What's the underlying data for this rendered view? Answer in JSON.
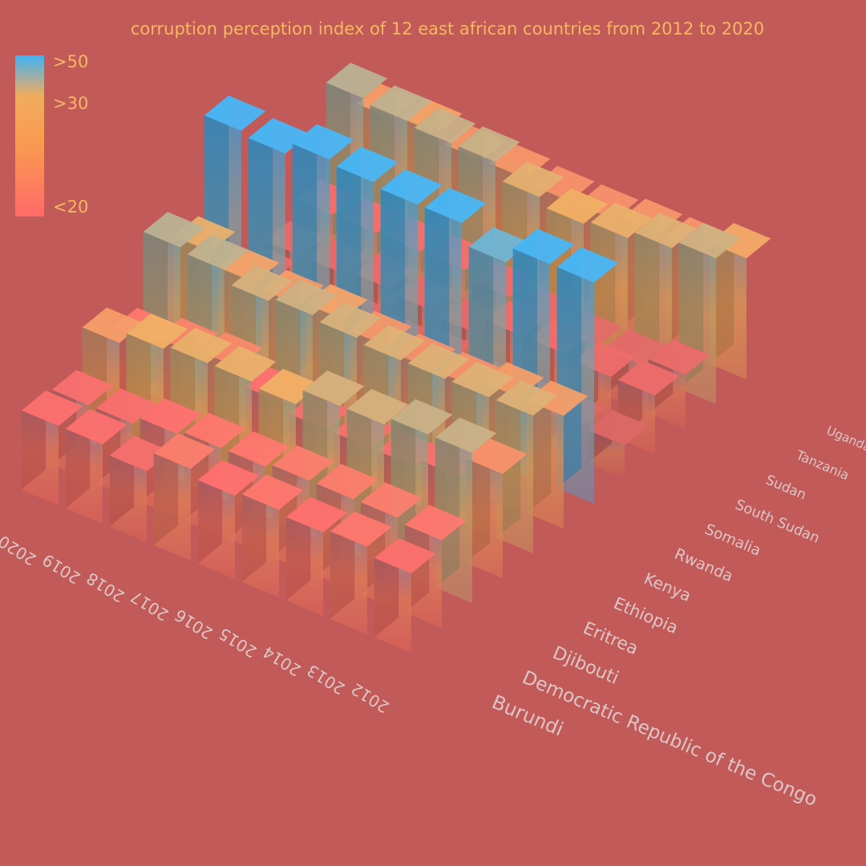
{
  "title": "corruption perception index of 12 east african countries from 2012 to 2020",
  "legend": {
    "labels": [
      ">50",
      ">30",
      "<20"
    ],
    "colors": [
      "#3fb2f6",
      "#f1ac5e",
      "#ff6a68"
    ]
  },
  "chart_data": {
    "type": "bar3d",
    "title": "corruption perception index of 12 east african countries from 2012 to 2020",
    "years": [
      "2012",
      "2013",
      "2014",
      "2015",
      "2016",
      "2017",
      "2018",
      "2019",
      "2020"
    ],
    "countries": [
      "Burundi",
      "Democratic Republic of the Congo",
      "Djibouti",
      "Eritrea",
      "Ethiopia",
      "Kenya",
      "Rwanda",
      "Somalia",
      "South Sudan",
      "Sudan",
      "Tanzania",
      "Uganda"
    ],
    "series": [
      {
        "name": "Burundi",
        "values": [
          19,
          21,
          20,
          21,
          20,
          22,
          17,
          19,
          19
        ]
      },
      {
        "name": "Democratic Republic of the Congo",
        "values": [
          21,
          22,
          22,
          22,
          21,
          21,
          20,
          18,
          18
        ]
      },
      {
        "name": "Djibouti",
        "values": [
          36,
          36,
          34,
          34,
          30,
          31,
          31,
          30,
          27
        ]
      },
      {
        "name": "Eritrea",
        "values": [
          25,
          20,
          18,
          18,
          18,
          20,
          24,
          23,
          21
        ]
      },
      {
        "name": "Ethiopia",
        "values": [
          33,
          33,
          33,
          33,
          34,
          35,
          34,
          37,
          38
        ]
      },
      {
        "name": "Kenya",
        "values": [
          27,
          27,
          25,
          25,
          26,
          28,
          27,
          28,
          31
        ]
      },
      {
        "name": "Rwanda",
        "values": [
          53,
          53,
          49,
          54,
          54,
          55,
          56,
          53,
          54
        ]
      },
      {
        "name": "Somalia",
        "values": [
          8,
          8,
          8,
          8,
          10,
          9,
          10,
          9,
          12
        ]
      },
      {
        "name": "South Sudan",
        "values": [
          14,
          14,
          15,
          15,
          11,
          12,
          13,
          12,
          12
        ]
      },
      {
        "name": "Sudan",
        "values": [
          13,
          11,
          11,
          12,
          14,
          16,
          16,
          16,
          16
        ]
      },
      {
        "name": "Tanzania",
        "values": [
          35,
          33,
          31,
          30,
          32,
          36,
          36,
          37,
          38
        ]
      },
      {
        "name": "Uganda",
        "values": [
          29,
          26,
          26,
          25,
          25,
          26,
          26,
          28,
          27
        ]
      }
    ],
    "zlim": [
      0,
      60
    ],
    "grid": false,
    "legend_position": "top-left"
  }
}
